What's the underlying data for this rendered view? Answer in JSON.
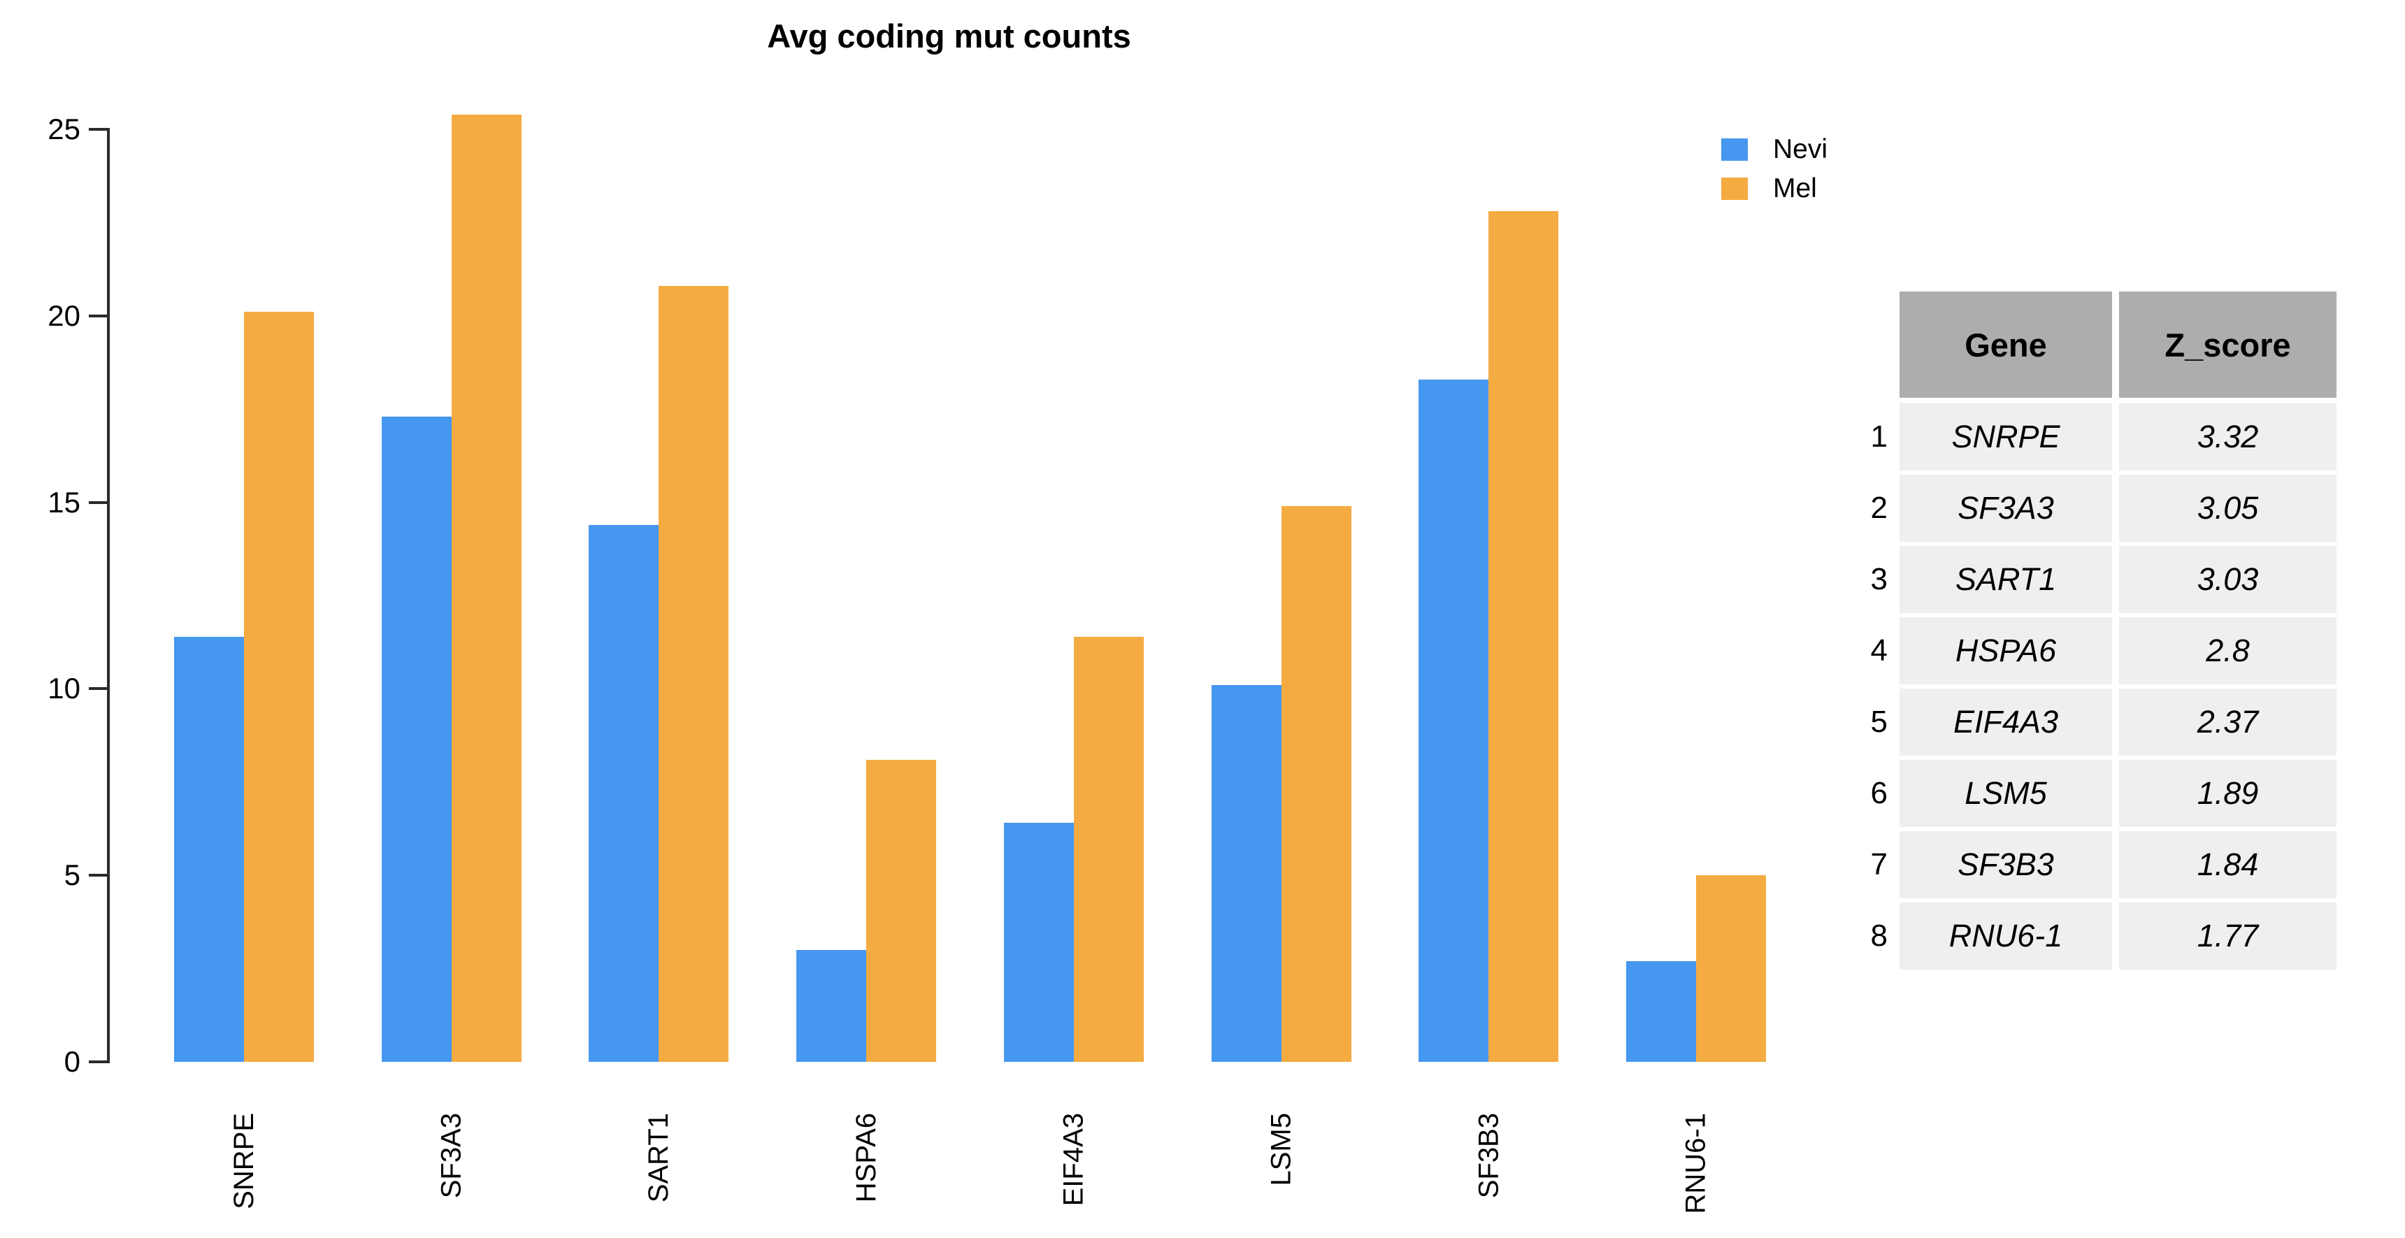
{
  "title": "Avg coding mut counts",
  "legend": {
    "items": [
      {
        "label": "Nevi",
        "color": "#4597F0"
      },
      {
        "label": "Mel",
        "color": "#F4AB41"
      }
    ]
  },
  "chart_data": {
    "type": "bar",
    "title": "Avg coding mut counts",
    "categories": [
      "SNRPE",
      "SF3A3",
      "SART1",
      "HSPA6",
      "EIF4A3",
      "LSM5",
      "SF3B3",
      "RNU6-1"
    ],
    "series": [
      {
        "name": "Nevi",
        "color": "#4597F0",
        "values": [
          11.4,
          17.3,
          14.4,
          3.0,
          6.4,
          10.1,
          18.3,
          2.7
        ]
      },
      {
        "name": "Mel",
        "color": "#F4AB41",
        "values": [
          20.1,
          25.4,
          20.8,
          8.1,
          11.4,
          14.9,
          22.8,
          5.0
        ]
      }
    ],
    "xlabel": "",
    "ylabel": "",
    "ylim": [
      0,
      25
    ],
    "yticks": [
      0,
      5,
      10,
      15,
      20,
      25
    ],
    "grid": false,
    "legend_position": "top-right",
    "x_tick_rotation": -90,
    "axis_color": "#2b2b2b"
  },
  "table": {
    "columns": [
      "Gene",
      "Z_score"
    ],
    "header_bg": "#ADADAD",
    "row_bg": "#EFEFEF",
    "rows": [
      {
        "index": "1",
        "gene": "SNRPE",
        "z_score": "3.32"
      },
      {
        "index": "2",
        "gene": "SF3A3",
        "z_score": "3.05"
      },
      {
        "index": "3",
        "gene": "SART1",
        "z_score": "3.03"
      },
      {
        "index": "4",
        "gene": "HSPA6",
        "z_score": "2.8"
      },
      {
        "index": "5",
        "gene": "EIF4A3",
        "z_score": "2.37"
      },
      {
        "index": "6",
        "gene": "LSM5",
        "z_score": "1.89"
      },
      {
        "index": "7",
        "gene": "SF3B3",
        "z_score": "1.84"
      },
      {
        "index": "8",
        "gene": "RNU6-1",
        "z_score": "1.77"
      }
    ]
  }
}
